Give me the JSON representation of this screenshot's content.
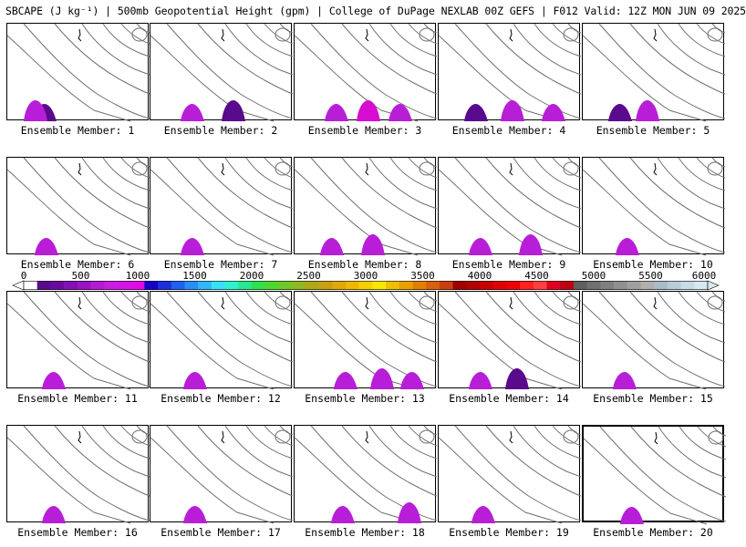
{
  "header": {
    "title": "SBCAPE (J kg⁻¹) | 500mb Geopotential Height (gpm) | College of DuPage NEXLAB 00Z GEFS | F012 Valid: 12Z MON JUN 09 2025"
  },
  "panels": [
    {
      "label": "Ensemble Member: 1"
    },
    {
      "label": "Ensemble Member: 2"
    },
    {
      "label": "Ensemble Member: 3"
    },
    {
      "label": "Ensemble Member: 4"
    },
    {
      "label": "Ensemble Member: 5"
    },
    {
      "label": "Ensemble Member: 6"
    },
    {
      "label": "Ensemble Member: 7"
    },
    {
      "label": "Ensemble Member: 8"
    },
    {
      "label": "Ensemble Member: 9"
    },
    {
      "label": "Ensemble Member: 10"
    },
    {
      "label": "Ensemble Member: 11"
    },
    {
      "label": "Ensemble Member: 12"
    },
    {
      "label": "Ensemble Member: 13"
    },
    {
      "label": "Ensemble Member: 14"
    },
    {
      "label": "Ensemble Member: 15"
    },
    {
      "label": "Ensemble Member: 16"
    },
    {
      "label": "Ensemble Member: 17"
    },
    {
      "label": "Ensemble Member: 18"
    },
    {
      "label": "Ensemble Member: 19"
    },
    {
      "label": "Ensemble Member: 20",
      "selected": true
    }
  ],
  "colorbar": {
    "ticks": [
      "0",
      "500",
      "1000",
      "1500",
      "2000",
      "2500",
      "3000",
      "3500",
      "4000",
      "4500",
      "5000",
      "5500",
      "6000"
    ],
    "min": 0,
    "max": 6000,
    "colors": {
      "contour": "#707070",
      "cape_low": "#5a0a8c",
      "cape_mid": "#b81ed8",
      "cape_high": "#d60cd0"
    }
  }
}
